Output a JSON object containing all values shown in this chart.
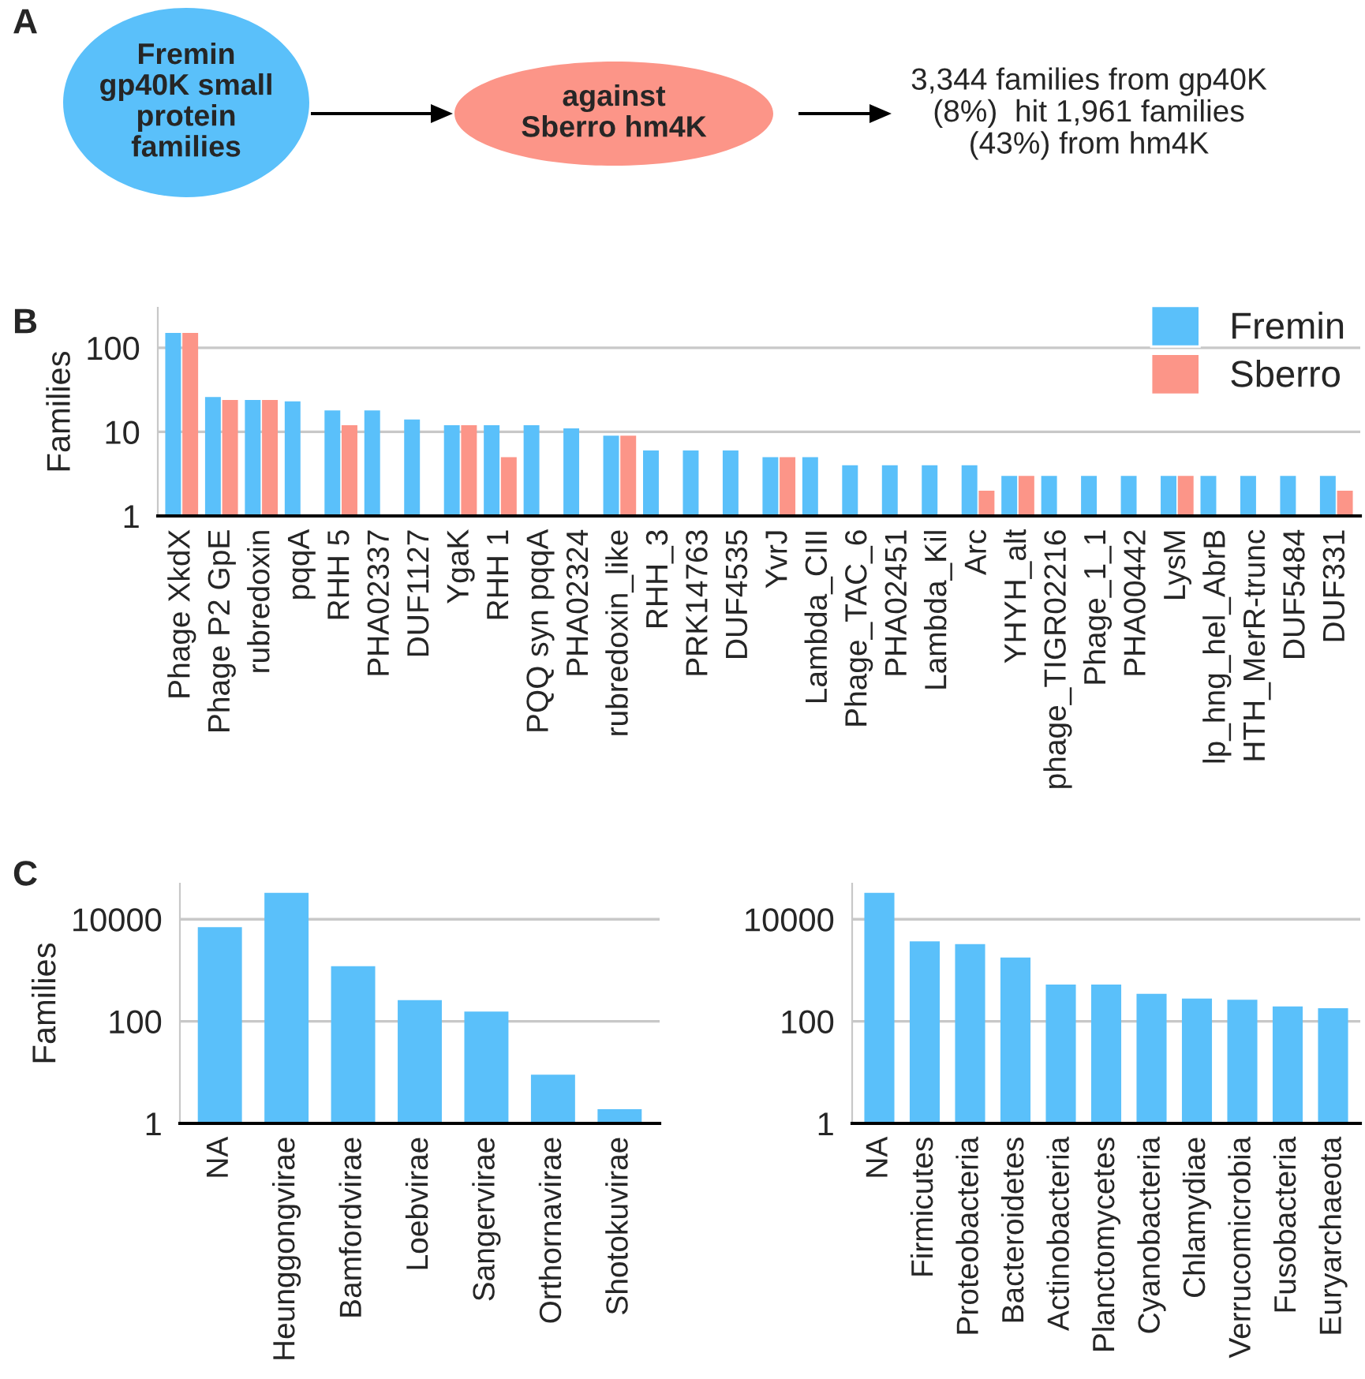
{
  "chart_data": [
    {
      "type": "other",
      "title": "A",
      "colors": [
        "#5ac0fa",
        "#fc9588"
      ],
      "annotations": [
        "Fremin\ngp40K small\nprotein\nfamilies",
        "against\nSberro hm4K",
        "3,344 families from gp40K\n(8%)  hit 1,961 families\n(43%) from hm4K"
      ]
    },
    {
      "type": "bar",
      "title": "B",
      "ylabel": "Families",
      "log": true,
      "ylim": [
        1,
        300
      ],
      "yticks": [
        1,
        10,
        100
      ],
      "grid": "y",
      "legend": "top right",
      "categories": [
        "Phage XkdX",
        "Phage P2 GpE",
        "rubredoxin",
        "pqqA",
        "RHH 5",
        "PHA02337",
        "DUF1127",
        "YgaK",
        "RHH 1",
        "PQQ syn pqqA",
        "PHA02324",
        "rubredoxin_like",
        "RHH_3",
        "PRK14763",
        "DUF4535",
        "YvrJ",
        "Lambda_CIII",
        "Phage_TAC_6",
        "PHA02451",
        "Lambda_Kil",
        "Arc",
        "YHYH_alt",
        "phage_TIGR02216",
        "Phage_1_1",
        "PHA00442",
        "LysM",
        "lp_hng_hel_AbrB",
        "HTH_MerR-trunc",
        "DUF5484",
        "DUF331"
      ],
      "series": [
        {
          "name": "Fremin",
          "color": "#5ac0fa",
          "values": [
            150,
            26,
            24,
            23,
            18,
            18,
            14,
            12,
            12,
            12,
            11,
            9,
            6,
            6,
            6,
            5,
            5,
            4,
            4,
            4,
            4,
            3,
            3,
            3,
            3,
            3,
            3,
            3,
            3,
            3
          ]
        },
        {
          "name": "Sberro",
          "color": "#fc9588",
          "values": [
            150,
            24,
            24,
            null,
            12,
            null,
            null,
            12,
            5,
            null,
            null,
            9,
            null,
            null,
            null,
            5,
            null,
            null,
            null,
            null,
            2,
            3,
            null,
            null,
            null,
            3,
            null,
            null,
            null,
            2
          ]
        }
      ]
    },
    {
      "type": "bar",
      "title": "C",
      "ylabel": "Families",
      "log": true,
      "ylim": [
        1,
        50000
      ],
      "yticks": [
        1,
        100,
        10000
      ],
      "grid": "y",
      "categories": [
        "NA",
        "Heunggongvirae",
        "Bamfordvirae",
        "Loebvirae",
        "Sangervirae",
        "Orthornavirae",
        "Shotokuvirae"
      ],
      "series": [
        {
          "color": "#5ac0fa",
          "values": [
            7000,
            33000,
            1200,
            260,
            155,
            9,
            1.9
          ]
        }
      ]
    },
    {
      "type": "bar",
      "log": true,
      "ylim": [
        1,
        50000
      ],
      "yticks": [
        1,
        100,
        10000
      ],
      "grid": "y",
      "categories": [
        "NA",
        "Firmicutes",
        "Proteobacteria",
        "Bacteroidetes",
        "Actinobacteria",
        "Planctomycetes",
        "Cyanobacteria",
        "Chlamydiae",
        "Verrucomicrobia",
        "Fusobacteria",
        "Euryarchaeota"
      ],
      "series": [
        {
          "color": "#5ac0fa",
          "values": [
            33000,
            3700,
            3250,
            1780,
            525,
            525,
            345,
            280,
            265,
            195,
            180
          ]
        }
      ]
    }
  ]
}
